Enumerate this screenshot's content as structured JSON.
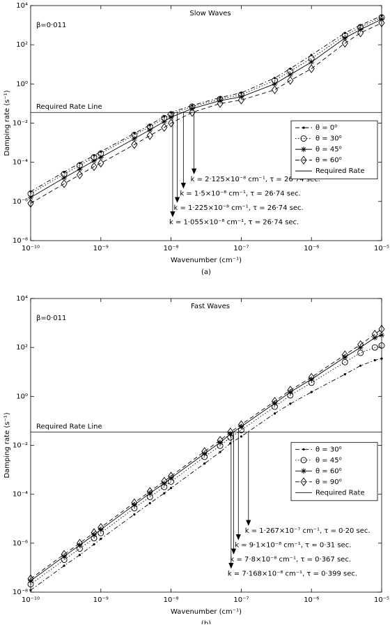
{
  "chart_data": [
    {
      "type": "line",
      "title": "Slow Waves",
      "beta_label": "β=0·011",
      "xlabel": "Wavenumber (cm⁻¹)",
      "ylabel": "Damping rate (s⁻¹)",
      "caption": "(a)",
      "xscale": "log",
      "yscale": "log",
      "xlim": [
        1e-10,
        1e-05
      ],
      "ylim": [
        1e-08,
        10000.0
      ],
      "xticks": [
        {
          "value": 1e-10,
          "label": "10⁻¹⁰"
        },
        {
          "value": 1e-09,
          "label": "10⁻⁹"
        },
        {
          "value": 1e-08,
          "label": "10⁻⁸"
        },
        {
          "value": 1e-07,
          "label": "10⁻⁷"
        },
        {
          "value": 1e-06,
          "label": "10⁻⁶"
        },
        {
          "value": 1e-05,
          "label": "10⁻⁵"
        }
      ],
      "yticks": [
        {
          "value": 1e-08,
          "label": "10⁻⁸"
        },
        {
          "value": 1e-06,
          "label": "10⁻⁶"
        },
        {
          "value": 0.0001,
          "label": "10⁻⁴"
        },
        {
          "value": 0.01,
          "label": "10⁻²"
        },
        {
          "value": 1,
          "label": "10⁰"
        },
        {
          "value": 100,
          "label": "10²"
        },
        {
          "value": 10000,
          "label": "10⁴"
        }
      ],
      "grid": false,
      "legend": "center right",
      "x": [
        1e-10,
        3e-10,
        5e-10,
        8e-10,
        1e-09,
        3e-09,
        5e-09,
        8e-09,
        1e-08,
        2e-08,
        5e-08,
        1e-07,
        3e-07,
        5e-07,
        1e-06,
        3e-06,
        5e-06,
        1e-05
      ],
      "series": [
        {
          "name": "θ = 0⁰",
          "color": "#000000",
          "marker": "point",
          "line_style": "dashdot",
          "values": [
            3.2e-06,
            3.2e-05,
            9e-05,
            0.00022,
            0.00035,
            0.003,
            0.008,
            0.022,
            0.035,
            0.08,
            0.2,
            0.35,
            2,
            6,
            30,
            400,
            1000,
            3000
          ]
        },
        {
          "name": "θ = 30⁰",
          "color": "#000000",
          "marker": "circle",
          "line_style": "dotted",
          "values": [
            2.5e-06,
            2.5e-05,
            7e-05,
            0.00018,
            0.00028,
            0.0025,
            0.0065,
            0.018,
            0.028,
            0.07,
            0.17,
            0.28,
            1.5,
            4.5,
            20,
            300,
            800,
            2500
          ]
        },
        {
          "name": "θ = 45⁰",
          "color": "#000000",
          "marker": "star",
          "line_style": "solid",
          "values": [
            1.6e-06,
            1.6e-05,
            4.5e-05,
            0.00012,
            0.00018,
            0.0016,
            0.0045,
            0.012,
            0.02,
            0.055,
            0.14,
            0.22,
            1,
            3,
            13,
            220,
            600,
            2000
          ]
        },
        {
          "name": "θ = 60⁰",
          "color": "#000000",
          "marker": "diamond",
          "line_style": "dashed",
          "values": [
            8e-07,
            8e-06,
            2.3e-05,
            6e-05,
            9e-05,
            0.0008,
            0.0023,
            0.006,
            0.01,
            0.035,
            0.1,
            0.15,
            0.5,
            1.5,
            6,
            120,
            400,
            1300
          ]
        }
      ],
      "required_rate": {
        "name": "Required Rate",
        "label": "Required Rate Line",
        "value": 0.035,
        "color": "#000000"
      },
      "arrows": [
        {
          "x": 2.125e-08,
          "label": "k = 2·125×10⁻⁸ cm⁻¹, τ = 26·74 sec."
        },
        {
          "x": 1.5e-08,
          "label": "k = 1·5×10⁻⁸ cm⁻¹, τ = 26·74 sec."
        },
        {
          "x": 1.225e-08,
          "label": "k = 1·225×10⁻⁸ cm⁻¹, τ = 26·74 sec."
        },
        {
          "x": 1.055e-08,
          "label": "k = 1·055×10⁻⁸ cm⁻¹, τ = 26·74 sec."
        }
      ]
    },
    {
      "type": "line",
      "title": "Fast Waves",
      "beta_label": "β=0·011",
      "xlabel": "Wavenumber (cm⁻¹)",
      "ylabel": "Damping rate (s⁻¹)",
      "caption": "(b)",
      "xscale": "log",
      "yscale": "log",
      "xlim": [
        1e-10,
        1e-05
      ],
      "ylim": [
        1e-08,
        10000.0
      ],
      "xticks": [
        {
          "value": 1e-10,
          "label": "10⁻¹⁰"
        },
        {
          "value": 1e-09,
          "label": "10⁻⁹"
        },
        {
          "value": 1e-08,
          "label": "10⁻⁸"
        },
        {
          "value": 1e-07,
          "label": "10⁻⁷"
        },
        {
          "value": 1e-06,
          "label": "10⁻⁶"
        },
        {
          "value": 1e-05,
          "label": "10⁻⁵"
        }
      ],
      "yticks": [
        {
          "value": 1e-08,
          "label": "10⁻⁸"
        },
        {
          "value": 1e-06,
          "label": "10⁻⁶"
        },
        {
          "value": 0.0001,
          "label": "10⁻⁴"
        },
        {
          "value": 0.01,
          "label": "10⁻²"
        },
        {
          "value": 1,
          "label": "10⁰"
        },
        {
          "value": 100,
          "label": "10²"
        },
        {
          "value": 10000,
          "label": "10⁴"
        }
      ],
      "grid": false,
      "legend": "center right",
      "x": [
        1e-10,
        3e-10,
        5e-10,
        8e-10,
        1e-09,
        3e-09,
        5e-09,
        8e-09,
        1e-08,
        3e-08,
        5e-08,
        7e-08,
        1e-07,
        3e-07,
        5e-07,
        1e-06,
        3e-06,
        5e-06,
        8e-06,
        1e-05
      ],
      "series": [
        {
          "name": "θ = 30⁰",
          "color": "#000000",
          "marker": "point",
          "line_style": "dashdot",
          "values": [
            1.2e-08,
            1.2e-07,
            3.3e-07,
            9e-07,
            1.5e-06,
            1.5e-05,
            4.3e-05,
            0.00011,
            0.00018,
            0.0018,
            0.0053,
            0.012,
            0.023,
            0.2,
            0.5,
            1.5,
            8,
            18,
            30,
            35
          ]
        },
        {
          "name": "θ = 45⁰",
          "color": "#000000",
          "marker": "circle",
          "line_style": "dotted",
          "values": [
            2.1e-08,
            2.1e-07,
            6e-07,
            1.6e-06,
            2.6e-06,
            2.7e-05,
            7.8e-05,
            0.0002,
            0.00033,
            0.0034,
            0.0096,
            0.021,
            0.042,
            0.38,
            1.1,
            3.6,
            25,
            60,
            100,
            120
          ]
        },
        {
          "name": "θ = 60⁰",
          "color": "#000000",
          "marker": "star",
          "line_style": "solid",
          "values": [
            2.9e-08,
            2.9e-07,
            8.3e-07,
            2.2e-06,
            3.6e-06,
            3.7e-05,
            0.00011,
            0.00028,
            0.00046,
            0.0046,
            0.013,
            0.029,
            0.058,
            0.52,
            1.5,
            5,
            40,
            100,
            250,
            320
          ]
        },
        {
          "name": "θ = 90⁰",
          "color": "#000000",
          "marker": "diamond",
          "line_style": "dashed",
          "values": [
            3.5e-08,
            3.5e-07,
            1e-06,
            2.7e-06,
            4.4e-06,
            4.5e-05,
            0.00013,
            0.00034,
            0.00055,
            0.0056,
            0.016,
            0.035,
            0.07,
            0.63,
            1.8,
            6,
            50,
            130,
            350,
            560
          ]
        }
      ],
      "required_rate": {
        "name": "Required Rate",
        "label": "Required Rate Line",
        "value": 0.035,
        "color": "#000000"
      },
      "arrows": [
        {
          "x": 1.267e-07,
          "label": "k = 1·267×10⁻⁷ cm⁻¹, τ = 0·20 sec."
        },
        {
          "x": 9.1e-08,
          "label": "k = 9·1×10⁻⁸ cm⁻¹, τ = 0·31 sec."
        },
        {
          "x": 7.8e-08,
          "label": "k = 7·8×10⁻⁸ cm⁻¹, τ = 0·367 sec."
        },
        {
          "x": 7.168e-08,
          "label": "k = 7·168×10⁻⁸ cm⁻¹, τ = 0·399 sec."
        }
      ]
    }
  ]
}
